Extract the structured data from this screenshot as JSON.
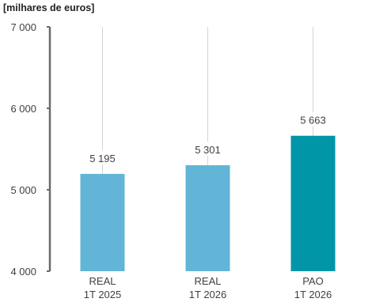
{
  "chart_data": {
    "type": "bar",
    "subtitle": "[milhares de euros]",
    "categories": [
      [
        "REAL",
        "1T 2025"
      ],
      [
        "REAL",
        "1T 2026"
      ],
      [
        "PAO",
        "1T 2026"
      ]
    ],
    "values": [
      5195,
      5301,
      5663
    ],
    "value_labels": [
      "5 195",
      "5 301",
      "5 663"
    ],
    "bar_colors": [
      "#62b5d6",
      "#62b5d6",
      "#0096a8"
    ],
    "ylim": [
      4000,
      7000
    ],
    "yticks": [
      4000,
      5000,
      6000,
      7000
    ],
    "ytick_labels": [
      "4 000",
      "5 000",
      "6 000",
      "7 000"
    ],
    "legend": "none",
    "grid": "vertical"
  }
}
